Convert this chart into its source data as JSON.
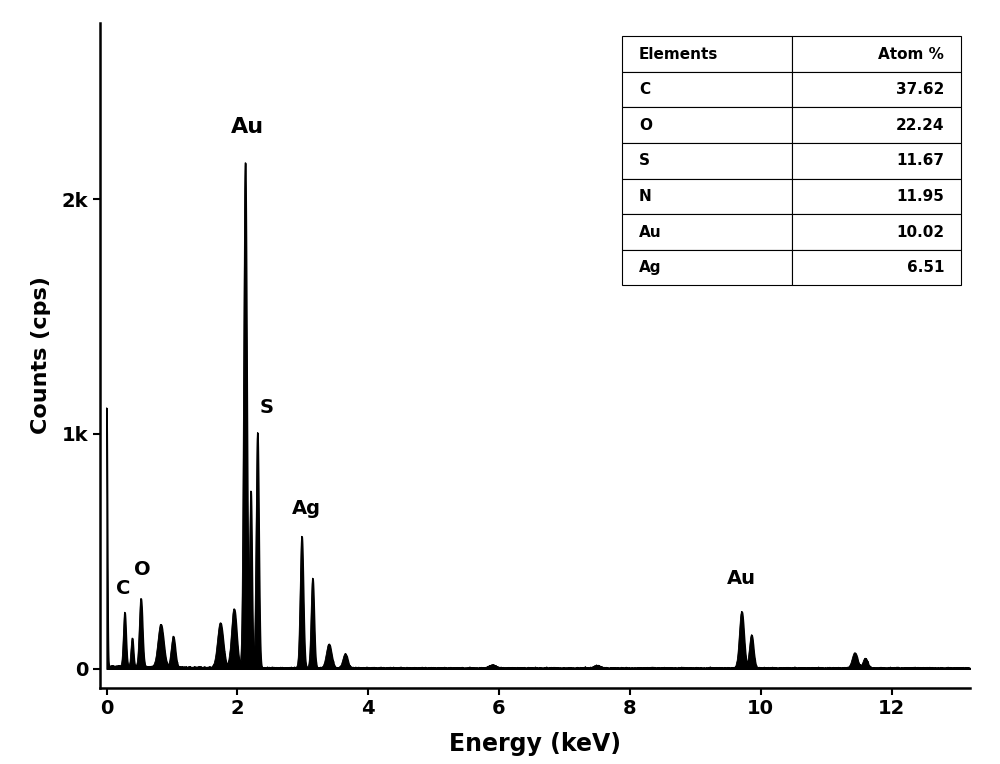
{
  "xlabel": "Energy (keV)",
  "ylabel": "Counts (cps)",
  "xlim": [
    -0.1,
    13.2
  ],
  "ylim": [
    -80,
    2750
  ],
  "yticks": [
    0,
    1000,
    2000
  ],
  "ytick_labels": [
    "0",
    "1k",
    "2k"
  ],
  "xticks": [
    0,
    2,
    4,
    6,
    8,
    10,
    12
  ],
  "table": {
    "elements": [
      "C",
      "O",
      "S",
      "N",
      "Au",
      "Ag"
    ],
    "atom_pct": [
      "37.62",
      "22.24",
      "11.67",
      "11.95",
      "10.02",
      "6.51"
    ]
  },
  "background_color": "#ffffff",
  "line_color": "#000000",
  "fontsize_labels": 17,
  "fontsize_ticks": 14,
  "fontsize_annot": 14,
  "fontsize_table": 11
}
